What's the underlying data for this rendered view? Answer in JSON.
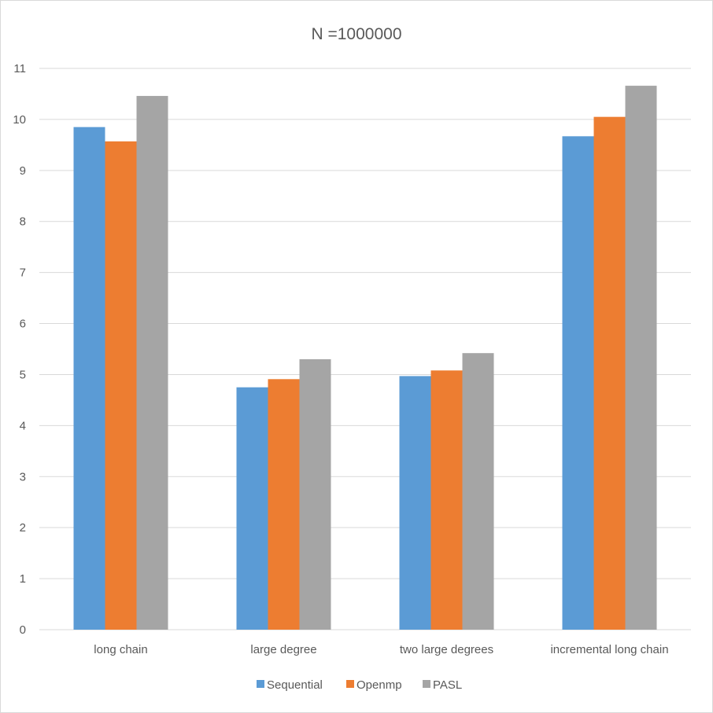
{
  "chart_data": {
    "type": "bar",
    "title": "N =1000000",
    "categories": [
      "long chain",
      "large degree",
      "two large degrees",
      "incremental long chain"
    ],
    "series": [
      {
        "name": "Sequential",
        "color": "#5B9BD5",
        "values": [
          9.85,
          4.75,
          4.97,
          9.67
        ]
      },
      {
        "name": "Openmp",
        "color": "#ED7D31",
        "values": [
          9.57,
          4.91,
          5.08,
          10.05
        ]
      },
      {
        "name": "PASL",
        "color": "#A5A5A5",
        "values": [
          10.46,
          5.3,
          5.42,
          10.66
        ]
      }
    ],
    "ylim": [
      0,
      11
    ],
    "yticks": [
      0,
      1,
      2,
      3,
      4,
      5,
      6,
      7,
      8,
      9,
      10,
      11
    ],
    "grid": true,
    "legend": "bottom"
  }
}
